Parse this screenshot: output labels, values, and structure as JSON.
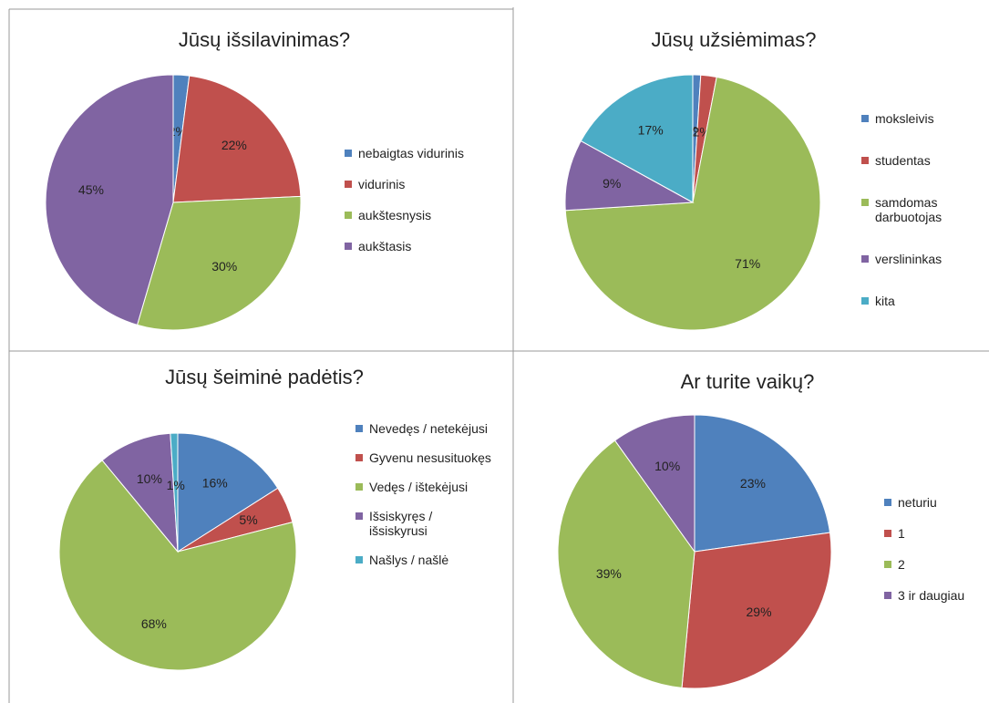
{
  "chart_data": [
    {
      "type": "pie",
      "title": "Jūsų išsilavinimas?",
      "categories": [
        "nebaigtas vidurinis",
        "vidurinis",
        "aukštesnysis",
        "aukštasis"
      ],
      "values": [
        2,
        22,
        30,
        45
      ],
      "value_labels": [
        "2%",
        "22%",
        "30%",
        "45%"
      ],
      "colors": [
        "#4f81bd",
        "#c0504d",
        "#9bbb59",
        "#8064a2"
      ]
    },
    {
      "type": "pie",
      "title": "Jūsų užsiėmimas?",
      "categories": [
        "moksleivis",
        "studentas",
        "samdomas darbuotojas",
        "verslininkas",
        "kita"
      ],
      "values": [
        1,
        2,
        71,
        9,
        17
      ],
      "value_labels": [
        "1%",
        "2%",
        "71%",
        "9%",
        "17%"
      ],
      "colors": [
        "#4f81bd",
        "#c0504d",
        "#9bbb59",
        "#8064a2",
        "#4bacc6"
      ]
    },
    {
      "type": "pie",
      "title": "Jūsų šeiminė padėtis?",
      "categories": [
        "Nevedęs / netekėjusi",
        "Gyvenu nesusituokęs",
        "Vedęs / ištekėjusi",
        "Išsiskyręs / išsiskyrusi",
        "Našlys / našlė"
      ],
      "values": [
        16,
        5,
        68,
        10,
        1
      ],
      "value_labels": [
        "16%",
        "5%",
        "68%",
        "10%",
        "1%"
      ],
      "colors": [
        "#4f81bd",
        "#c0504d",
        "#9bbb59",
        "#8064a2",
        "#4bacc6"
      ]
    },
    {
      "type": "pie",
      "title": "Ar turite vaikų?",
      "categories": [
        "neturiu",
        "1",
        "2",
        "3 ir daugiau"
      ],
      "values": [
        23,
        29,
        39,
        10
      ],
      "value_labels": [
        "23%",
        "29%",
        "39%",
        "10%"
      ],
      "colors": [
        "#4f81bd",
        "#c0504d",
        "#9bbb59",
        "#8064a2"
      ]
    }
  ]
}
